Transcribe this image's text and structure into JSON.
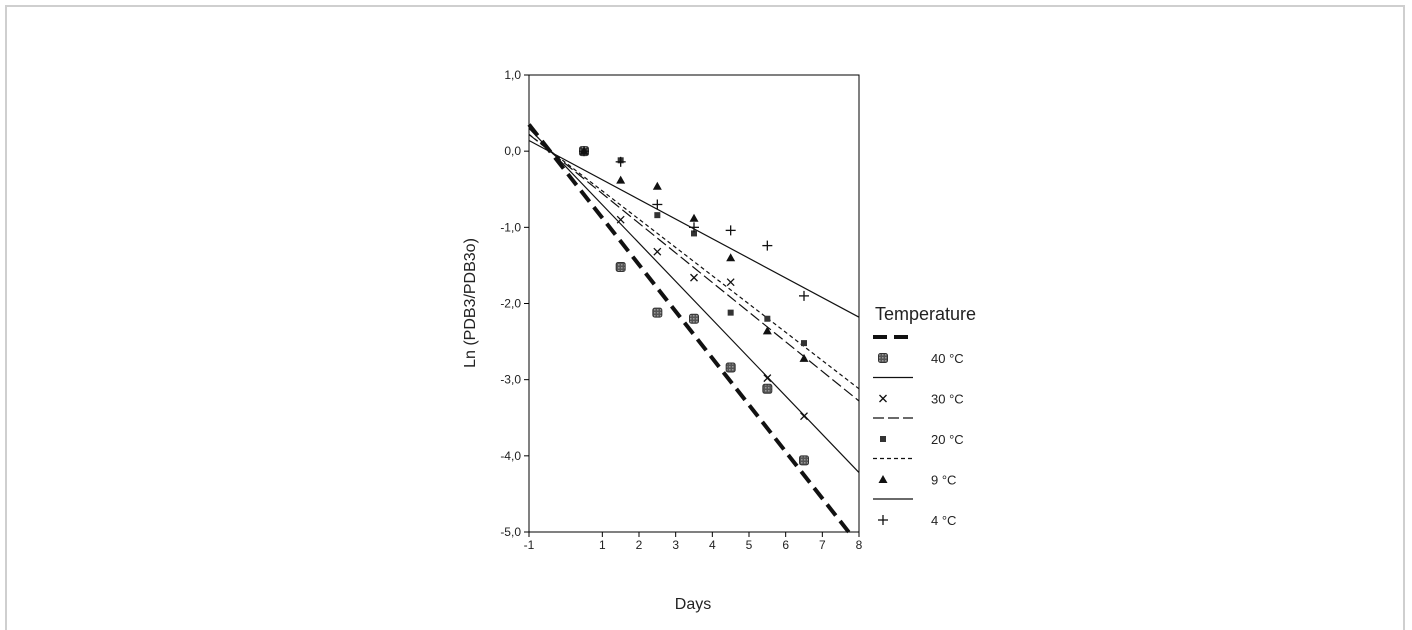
{
  "chart_data": {
    "type": "scatter",
    "xlabel": "Days",
    "ylabel": "Ln (PDB3/PDB3o)",
    "xlim": [
      -1,
      8
    ],
    "ylim": [
      -5,
      1
    ],
    "x_ticks": [
      -1,
      1,
      2,
      3,
      4,
      5,
      6,
      7,
      8
    ],
    "x_tick_labels": [
      "-1",
      "1",
      "2",
      "3",
      "4",
      "5",
      "6",
      "7",
      "8"
    ],
    "y_ticks": [
      1,
      0,
      -1,
      -2,
      -3,
      -4,
      -5
    ],
    "y_tick_labels": [
      "1,0",
      "0,0",
      "-1,0",
      "-2,0",
      "-3,0",
      "-4,0",
      "-5,0"
    ],
    "legend": {
      "title": "Temperature",
      "placement": "right"
    },
    "series": [
      {
        "name": "40 °C",
        "marker": "filled-square-hatched",
        "line_style": "thick-dashed",
        "x": [
          0.5,
          1.5,
          2.5,
          3.5,
          4.5,
          5.5,
          6.5
        ],
        "y": [
          0.0,
          -1.52,
          -2.12,
          -2.2,
          -2.84,
          -3.12,
          -4.06
        ],
        "fit_line": {
          "x": [
            -1,
            7.8
          ],
          "y": [
            0.35,
            -5.05
          ]
        }
      },
      {
        "name": "30 °C",
        "marker": "x",
        "line_style": "solid",
        "x": [
          0.5,
          1.5,
          2.5,
          3.5,
          4.5,
          5.5,
          6.5
        ],
        "y": [
          0.0,
          -0.9,
          -1.32,
          -1.66,
          -1.72,
          -2.98,
          -3.48
        ],
        "fit_line": {
          "x": [
            -1,
            8
          ],
          "y": [
            0.3,
            -4.22
          ]
        }
      },
      {
        "name": "20 °C",
        "marker": "square",
        "line_style": "long-dash",
        "x": [
          0.5,
          1.5,
          2.5,
          3.5,
          4.5,
          5.5,
          6.5
        ],
        "y": [
          0.0,
          -0.12,
          -0.84,
          -1.08,
          -2.12,
          -2.2,
          -2.52
        ],
        "fit_line": {
          "x": [
            -1,
            8
          ],
          "y": [
            0.22,
            -3.28
          ]
        }
      },
      {
        "name": "9 °C",
        "marker": "triangle",
        "line_style": "short-dash",
        "x": [
          0.5,
          1.5,
          2.5,
          3.5,
          4.5,
          5.5,
          6.5
        ],
        "y": [
          0.0,
          -0.38,
          -0.46,
          -0.88,
          -1.4,
          -2.36,
          -2.72
        ],
        "fit_line": {
          "x": [
            -1,
            8
          ],
          "y": [
            0.22,
            -3.12
          ]
        }
      },
      {
        "name": "4 °C",
        "marker": "plus",
        "line_style": "solid",
        "x": [
          0.5,
          1.5,
          2.5,
          3.5,
          4.5,
          5.5,
          6.5
        ],
        "y": [
          0.0,
          -0.14,
          -0.7,
          -1.0,
          -1.04,
          -1.24,
          -1.9
        ],
        "fit_line": {
          "x": [
            -1,
            8
          ],
          "y": [
            0.14,
            -2.18
          ]
        }
      }
    ]
  }
}
